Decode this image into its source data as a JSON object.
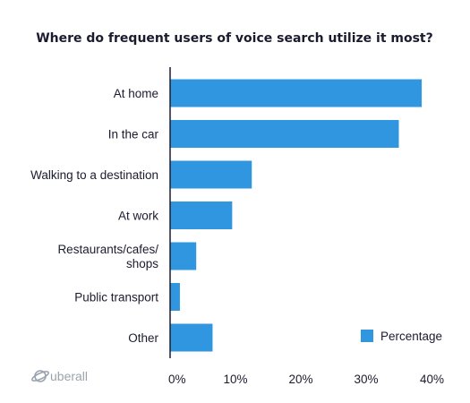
{
  "chart_data": {
    "type": "bar",
    "orientation": "horizontal",
    "title": "Where do frequent users of voice search utilize it most?",
    "categories": [
      "At home",
      "In the car",
      "Walking to a destination",
      "At work",
      "Restaurants/cafes/\nshops",
      "Public transport",
      "Other"
    ],
    "series": [
      {
        "name": "Percentage",
        "values": [
          38.5,
          35,
          12.5,
          9.5,
          4,
          1.5,
          6.5
        ]
      }
    ],
    "xlim": [
      0,
      40
    ],
    "xticks": [
      0,
      10,
      20,
      30,
      40
    ],
    "xtick_labels": [
      "0%",
      "10%",
      "20%",
      "30%",
      "40%"
    ],
    "grid": false,
    "legend_position": "bottom-right",
    "bar_color": "#2f96df"
  },
  "branding": {
    "logo_text": "uberall",
    "logo_color": "#9aa3ad"
  }
}
